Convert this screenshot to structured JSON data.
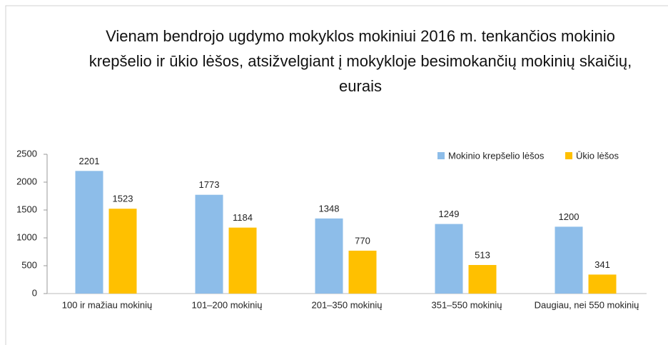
{
  "chart_data": {
    "type": "bar",
    "title": [
      "Vienam bendrojo ugdymo mokyklos mokiniui 2016 m. tenkančios mokinio",
      "krepšelio ir ūkio lėšos, atsižvelgiant į mokykloje besimokančių mokinių skaičių,",
      "eurais"
    ],
    "categories": [
      "100 ir mažiau mokinių",
      "101–200 mokinių",
      "201–350 mokinių",
      "351–550 mokinių",
      "Daugiau, nei 550 mokinių"
    ],
    "series": [
      {
        "name": "Mokinio krepšelio lėšos",
        "color": "#8dbde9",
        "values": [
          2201,
          1773,
          1348,
          1249,
          1200
        ]
      },
      {
        "name": "Ūkio lėšos",
        "color": "#ffc000",
        "values": [
          1523,
          1184,
          770,
          513,
          341
        ]
      }
    ],
    "ylim": [
      0,
      2500
    ],
    "yticks": [
      0,
      500,
      1000,
      1500,
      2000,
      2500
    ],
    "grid": false,
    "legend": "top-right"
  }
}
